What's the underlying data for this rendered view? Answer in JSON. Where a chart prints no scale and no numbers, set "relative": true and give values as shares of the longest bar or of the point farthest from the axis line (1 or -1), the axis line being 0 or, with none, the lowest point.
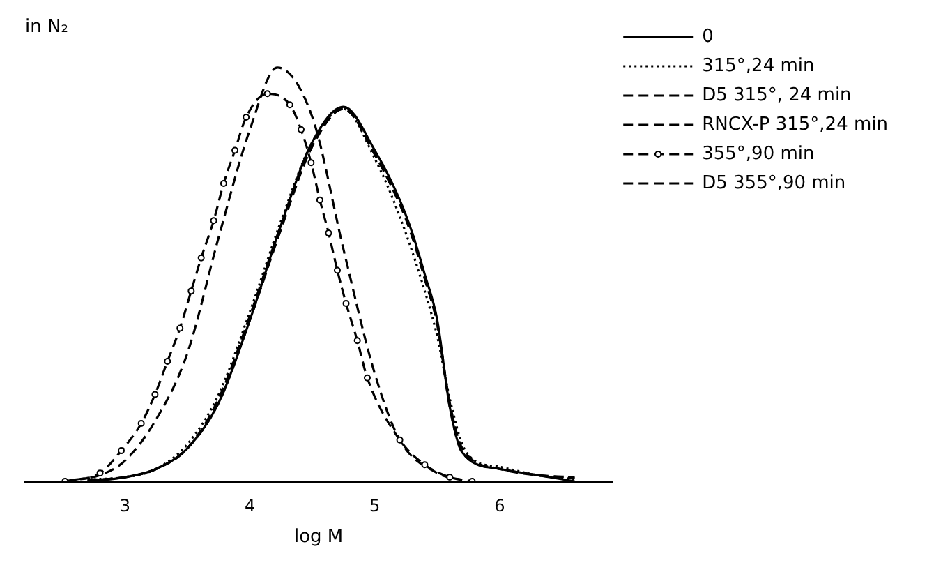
{
  "chart_data": {
    "type": "line",
    "title": "in N₂",
    "xlabel": "log M",
    "relative": true,
    "xlim": [
      2.2,
      6.9
    ],
    "xticks": [
      3,
      4,
      5,
      6
    ],
    "grid": false,
    "legend": "top right",
    "series": [
      {
        "name": "0",
        "color": "#000000",
        "line_style": "solid",
        "marker": "none",
        "x": [
          2.7,
          3.0,
          3.25,
          3.5,
          3.75,
          4.0,
          4.25,
          4.5,
          4.75,
          5.0,
          5.2,
          5.3,
          5.4,
          5.5,
          5.6,
          5.7,
          6.0,
          6.3,
          6.6
        ],
        "values": [
          0,
          0.01,
          0.03,
          0.08,
          0.19,
          0.39,
          0.62,
          0.82,
          0.905,
          0.8,
          0.68,
          0.6,
          0.5,
          0.39,
          0.18,
          0.07,
          0.03,
          0.015,
          0
        ]
      },
      {
        "name": "315°,24 min",
        "color": "#000000",
        "line_style": "dotted",
        "marker": "none",
        "x": [
          2.75,
          3.0,
          3.25,
          3.5,
          3.75,
          4.0,
          4.25,
          4.5,
          4.75,
          5.0,
          5.2,
          5.4,
          5.5,
          5.6,
          5.7,
          5.8,
          6.0,
          6.3,
          6.6
        ],
        "values": [
          0.005,
          0.01,
          0.03,
          0.09,
          0.21,
          0.41,
          0.63,
          0.82,
          0.9,
          0.78,
          0.64,
          0.46,
          0.35,
          0.2,
          0.09,
          0.05,
          0.035,
          0.015,
          0.005
        ]
      },
      {
        "name": "D5 315°, 24 min",
        "color": "#000000",
        "line_style": "dashed",
        "marker": "none",
        "x": [
          2.7,
          3.0,
          3.25,
          3.5,
          3.75,
          4.0,
          4.25,
          4.5,
          4.75,
          5.0,
          5.2,
          5.3,
          5.4,
          5.5,
          5.6,
          5.7,
          6.0,
          6.3,
          6.6
        ],
        "values": [
          0.002,
          0.01,
          0.03,
          0.08,
          0.2,
          0.4,
          0.62,
          0.81,
          0.9,
          0.79,
          0.67,
          0.59,
          0.49,
          0.38,
          0.18,
          0.07,
          0.03,
          0.015,
          0.008
        ]
      },
      {
        "name": "RNCX-P 315°,24 min",
        "color": "#000000",
        "line_style": "dashed",
        "marker": "none",
        "x": [
          2.7,
          3.0,
          3.25,
          3.5,
          3.75,
          4.0,
          4.25,
          4.5,
          4.75,
          5.0,
          5.2,
          5.3,
          5.4,
          5.5,
          5.6,
          5.7,
          6.0,
          6.3,
          6.6
        ],
        "values": [
          0.003,
          0.01,
          0.03,
          0.08,
          0.19,
          0.39,
          0.61,
          0.81,
          0.9,
          0.79,
          0.67,
          0.6,
          0.49,
          0.38,
          0.19,
          0.08,
          0.03,
          0.015,
          0.01
        ]
      },
      {
        "name": "355°,90 min",
        "color": "#000000",
        "line_style": "dashed",
        "marker": "circle",
        "x": [
          2.52,
          2.8,
          2.97,
          3.13,
          3.24,
          3.34,
          3.44,
          3.53,
          3.61,
          3.71,
          3.79,
          3.88,
          3.97,
          4.14,
          4.32,
          4.41,
          4.49,
          4.56,
          4.63,
          4.7,
          4.77,
          4.86,
          4.94,
          5.2,
          5.4,
          5.6,
          5.78
        ],
        "values": [
          0,
          0.02,
          0.074,
          0.14,
          0.21,
          0.29,
          0.37,
          0.46,
          0.54,
          0.63,
          0.72,
          0.8,
          0.88,
          0.937,
          0.91,
          0.85,
          0.77,
          0.68,
          0.6,
          0.51,
          0.43,
          0.34,
          0.25,
          0.1,
          0.04,
          0.01,
          0
        ]
      },
      {
        "name": "D5 355°,90 min",
        "color": "#000000",
        "line_style": "dashed",
        "marker": "none",
        "x": [
          2.6,
          2.8,
          3.0,
          3.25,
          3.5,
          3.75,
          4.0,
          4.22,
          4.5,
          4.75,
          5.0,
          5.2,
          5.5,
          5.7
        ],
        "values": [
          0.004,
          0.015,
          0.05,
          0.15,
          0.31,
          0.59,
          0.85,
          1.0,
          0.88,
          0.56,
          0.26,
          0.1,
          0.02,
          0.003
        ]
      }
    ]
  }
}
